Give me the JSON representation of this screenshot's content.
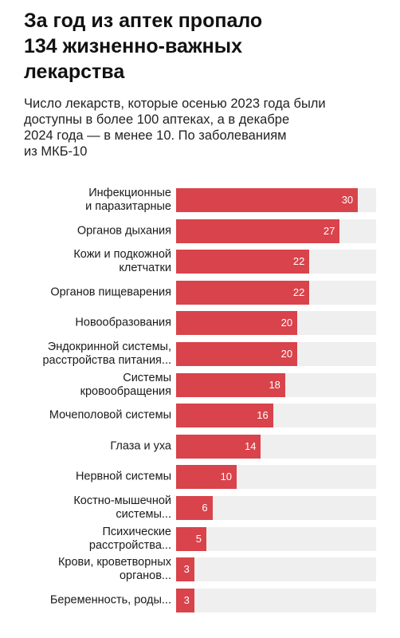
{
  "title": "За год из аптек пропало\n134 жизненно-важных\nлекарства",
  "subtitle": "Число лекарств, которые осенью 2023 года были\nдоступны в более 100 аптеках, а в декабре\n2024 года — в менее 10. По заболеваниям\nиз МКБ-10",
  "colors": {
    "bar": "#d9434b",
    "track": "#efefef"
  },
  "chart_data": {
    "type": "bar",
    "orientation": "horizontal",
    "categories": [
      "Инфекционные\nи паразитарные",
      "Органов дыхания",
      "Кожи и подкожной\nклетчатки",
      "Органов пищеварения",
      "Новообразования",
      "Эндокринной системы,\nрасстройства питания...",
      "Системы\nкровообращения",
      "Мочеполовой системы",
      "Глаза и уха",
      "Нервной системы",
      "Костно-мышечной\nсистемы...",
      "Психические\nрасстройства...",
      "Крови, кроветворных\nорганов...",
      "Беременность, роды..."
    ],
    "values": [
      30,
      27,
      22,
      22,
      20,
      20,
      18,
      16,
      14,
      10,
      6,
      5,
      3,
      3
    ],
    "xlim": [
      0,
      33
    ],
    "grid": false,
    "legend": "none"
  }
}
